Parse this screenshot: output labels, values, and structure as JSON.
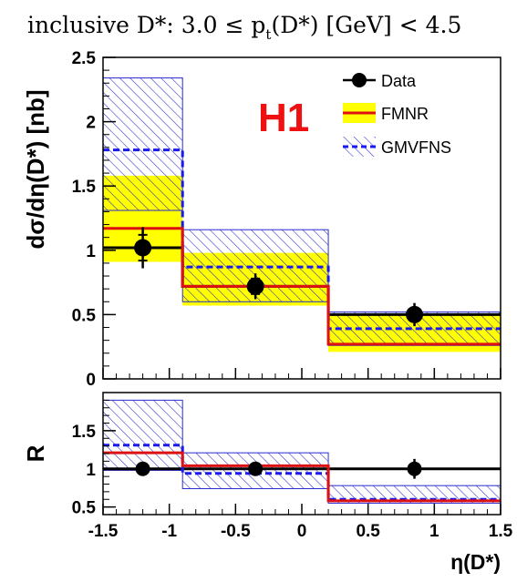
{
  "colors": {
    "data": "#000000",
    "fmnr_line": "#dd1111",
    "fmnr_band": "#ffff00",
    "gmvfns_line": "#1a1aee",
    "gmvfns_hatch": "#2a2ad0",
    "h1_logo": "#ee1111"
  },
  "title_parts": {
    "pre": "inclusive D*: 3.0 ≤ p",
    "sub": "t",
    "post": "(D*) [GeV] < 4.5"
  },
  "logo": "H1",
  "legend": {
    "data": "Data",
    "fmnr": "FMNR",
    "gmvfns": "GMVFNS"
  },
  "chart_data": [
    {
      "type": "histogram",
      "panel": "top",
      "ylabel": "dσ/dη(D*) [nb]",
      "ylim": [
        0,
        2.5
      ],
      "yticks": [
        "0",
        "0.5",
        "1",
        "1.5",
        "2",
        "2.5"
      ],
      "bins": [
        -1.5,
        -0.9,
        0.2,
        1.5
      ],
      "data": {
        "x": [
          -1.2,
          -0.35,
          0.85
        ],
        "y": [
          1.02,
          0.72,
          0.5
        ],
        "err_stat": [
          0.1,
          0.06,
          0.04
        ],
        "err_tot": [
          0.16,
          0.1,
          0.09
        ]
      },
      "fmnr": {
        "central": [
          1.17,
          0.72,
          0.27
        ],
        "low": [
          0.91,
          0.57,
          0.21
        ],
        "high": [
          1.58,
          0.98,
          0.5
        ]
      },
      "gmvfns": {
        "central": [
          1.78,
          0.87,
          0.39
        ],
        "low": [
          1.31,
          0.6,
          0.26
        ],
        "high": [
          2.34,
          1.16,
          0.52
        ]
      }
    },
    {
      "type": "histogram",
      "panel": "ratio",
      "ylabel": "R",
      "ylim": [
        0.4,
        2.0
      ],
      "yticks": [
        "0.5",
        "1",
        "1.5"
      ],
      "bins": [
        -1.5,
        -0.9,
        0.2,
        1.5
      ],
      "xlabel": "η(D*)",
      "xlim": [
        -1.5,
        1.5
      ],
      "xticks": [
        "-1.5",
        "-1",
        "-0.5",
        "0",
        "0.5",
        "1",
        "1.5"
      ],
      "data": {
        "x": [
          -1.2,
          -0.35,
          0.85
        ],
        "y": [
          1.0,
          1.0,
          1.0
        ],
        "err_stat": [
          0.04,
          0.04,
          0.06
        ],
        "err_tot": [
          0.05,
          0.05,
          0.13
        ]
      },
      "fmnr": {
        "central": [
          1.21,
          1.04,
          0.58
        ]
      },
      "gmvfns": {
        "central": [
          1.31,
          0.94,
          0.6
        ],
        "low": [
          0.98,
          0.74,
          0.55
        ],
        "high": [
          1.9,
          1.21,
          0.78
        ]
      }
    }
  ]
}
